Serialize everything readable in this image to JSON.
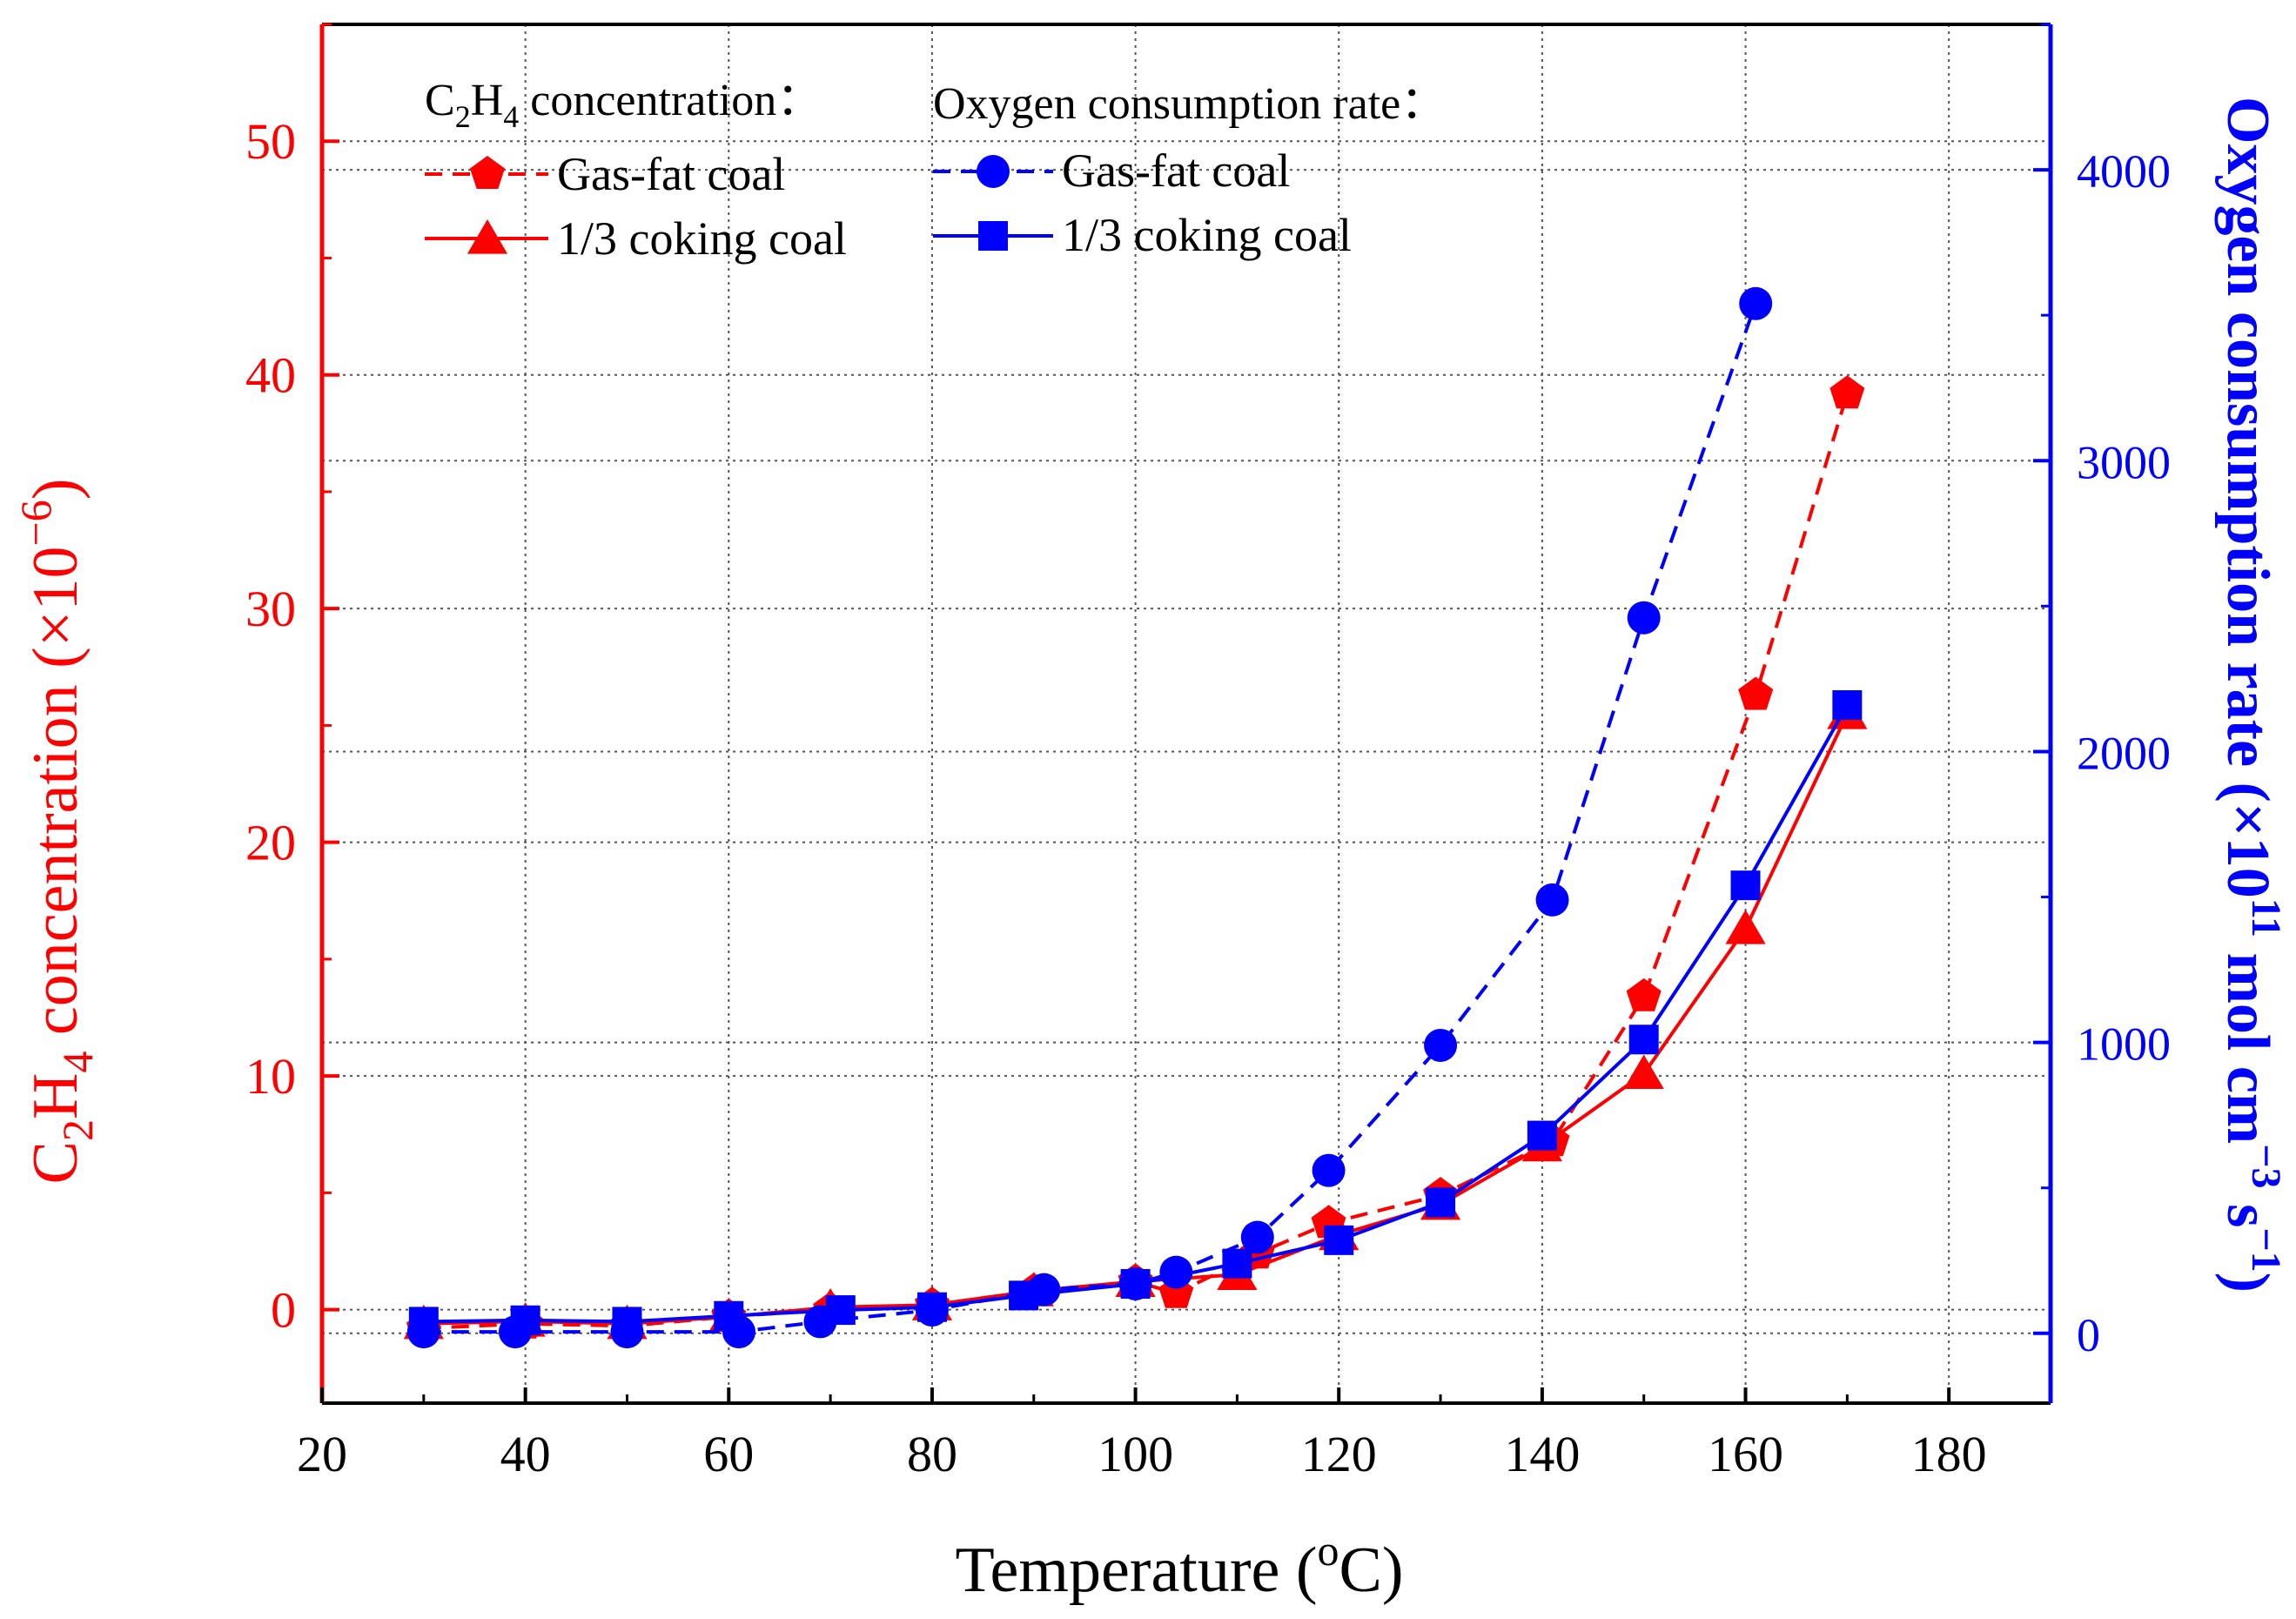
{
  "chart_data": {
    "type": "line",
    "xlabel": "Temperature (",
    "xlabel_sup": "o",
    "xlabel_end": "C)",
    "ylabel_left": {
      "c": "C",
      "sub1": "2",
      "h": "H",
      "sub2": "4",
      "rest": " concentration (×10",
      "sup": "−6",
      "end": ")"
    },
    "ylabel_right": {
      "pre": "Oxygen consumption rate (×10",
      "sup1": "11",
      "mid": " mol cm",
      "sup2": "−3",
      "s": " s",
      "sup3": "−1",
      "end": ")"
    },
    "xlim": [
      20,
      190
    ],
    "ylim_left": [
      -4,
      55
    ],
    "ylim_right": [
      -240,
      4500
    ],
    "x_ticks": [
      "20",
      "40",
      "60",
      "80",
      "100",
      "120",
      "140",
      "160",
      "180"
    ],
    "y_ticks_left": [
      "0",
      "10",
      "20",
      "30",
      "40",
      "50"
    ],
    "y_ticks_right": [
      "0",
      "1000",
      "2000",
      "3000",
      "4000"
    ],
    "grid": true,
    "colors": {
      "left_axis": "#ff0000",
      "right_axis": "#0000ff",
      "frame": "#000000"
    },
    "legend": {
      "group1_title": {
        "c": "C",
        "sub1": "2",
        "h": "H",
        "sub2": "4",
        "rest": " concentration："
      },
      "group2_title": "Oxygen consumption rate：",
      "placement": "top-left"
    },
    "series": [
      {
        "name": "Gas-fat coal",
        "group": "C2H4 concentration",
        "axis": "left",
        "color": "#ff0000",
        "marker": "pentagon",
        "dash": "dashed",
        "x": [
          30,
          40,
          50,
          60,
          70,
          80,
          90,
          100,
          104,
          112,
          119,
          130,
          141,
          150,
          161,
          170
        ],
        "y": [
          -0.8,
          -0.6,
          -0.7,
          -0.3,
          0,
          0.2,
          0.8,
          1.2,
          0.7,
          2.4,
          3.7,
          4.9,
          7.2,
          13.4,
          26.3,
          39.2
        ]
      },
      {
        "name": "1/3 coking coal",
        "group": "C2H4 concentration",
        "axis": "left",
        "color": "#ff0000",
        "marker": "triangle",
        "dash": "solid",
        "x": [
          30,
          40,
          50,
          60,
          70,
          80,
          90,
          100,
          110,
          120,
          130,
          140,
          150,
          160,
          170
        ],
        "y": [
          -0.6,
          -0.5,
          -0.6,
          -0.3,
          0.1,
          0.2,
          0.8,
          1.2,
          1.5,
          3.2,
          4.5,
          7.0,
          10.1,
          16.3,
          25.5
        ]
      },
      {
        "name": "Gas-fat coal",
        "group": "Oxygen consumption rate",
        "axis": "right",
        "color": "#0000ff",
        "marker": "circle",
        "dash": "dashed",
        "x": [
          30,
          39,
          50,
          61,
          69,
          80,
          91,
          100,
          104,
          112,
          119,
          130,
          141,
          150,
          161
        ],
        "y": [
          5,
          5,
          5,
          5,
          40,
          80,
          150,
          170,
          210,
          330,
          560,
          990,
          1490,
          2460,
          3540
        ]
      },
      {
        "name": "1/3 coking coal",
        "group": "Oxygen consumption rate",
        "axis": "right",
        "color": "#0000ff",
        "marker": "square",
        "dash": "solid",
        "x": [
          30,
          40,
          50,
          60,
          71,
          80,
          89,
          100,
          110,
          120,
          130,
          140,
          150,
          160,
          170
        ],
        "y": [
          40,
          45,
          40,
          60,
          80,
          90,
          130,
          170,
          240,
          320,
          450,
          680,
          1010,
          1540,
          2160
        ]
      }
    ]
  }
}
